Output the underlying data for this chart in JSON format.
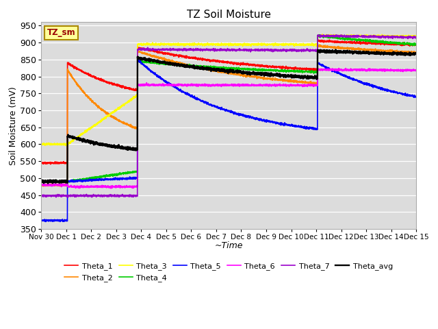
{
  "title": "TZ Soil Moisture",
  "xlabel": "~Time",
  "ylabel": "Soil Moisture (mV)",
  "ylim": [
    350,
    960
  ],
  "yticks": [
    350,
    400,
    450,
    500,
    550,
    600,
    650,
    700,
    750,
    800,
    850,
    900,
    950
  ],
  "bg_color": "#dcdcdc",
  "colors": {
    "Theta_1": "#ff0000",
    "Theta_2": "#ff8800",
    "Theta_3": "#ffff00",
    "Theta_4": "#00cc00",
    "Theta_5": "#0000ff",
    "Theta_6": "#ff00ff",
    "Theta_7": "#9900cc",
    "Theta_avg": "#000000"
  },
  "label_box_color": "#ffff99",
  "label_box_text": "TZ_sm",
  "label_box_text_color": "#990000",
  "x_tick_labels": [
    "Nov 30",
    "Dec 1",
    "Dec 2",
    "Dec 3",
    "Dec 4",
    "Dec 5",
    "Dec 6",
    "Dec 7",
    "Dec 8",
    "Dec 9",
    "Dec 10",
    "Dec 11",
    "Dec 12",
    "Dec 13",
    "Dec 14",
    "Dec 15"
  ],
  "figsize": [
    6.4,
    4.8
  ],
  "dpi": 100
}
